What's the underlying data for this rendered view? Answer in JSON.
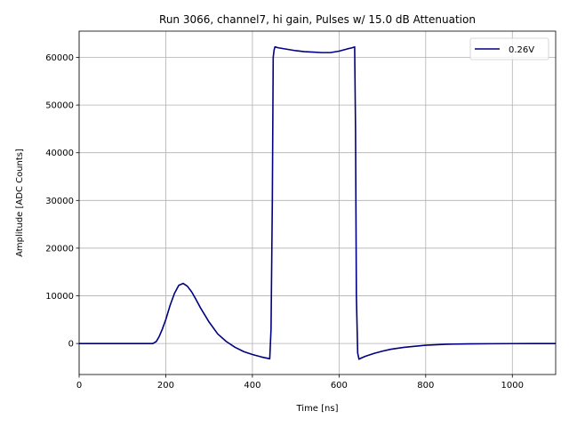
{
  "chart_data": {
    "type": "line",
    "title": "Run 3066, channel7, hi gain, Pulses w/ 15.0 dB Attenuation",
    "xlabel": "Time [ns]",
    "ylabel": "Amplitude [ADC Counts]",
    "xlim": [
      0,
      1100
    ],
    "ylim": [
      -6500,
      65500
    ],
    "xticks": [
      0,
      200,
      400,
      600,
      800,
      1000
    ],
    "yticks": [
      0,
      10000,
      20000,
      30000,
      40000,
      50000,
      60000
    ],
    "xtick_labels": [
      "0",
      "200",
      "400",
      "600",
      "800",
      "1000"
    ],
    "ytick_labels": [
      "0",
      "10000",
      "20000",
      "30000",
      "40000",
      "50000",
      "60000"
    ],
    "grid": true,
    "legend_position": "top-right",
    "colors": {
      "series": "#000080",
      "grid": "#b0b0b0"
    },
    "series": [
      {
        "name": "0.26V",
        "x": [
          0,
          100,
          170,
          178,
          185,
          192,
          200,
          210,
          220,
          230,
          240,
          250,
          260,
          270,
          280,
          300,
          320,
          340,
          360,
          380,
          400,
          420,
          440,
          443,
          446,
          448,
          450,
          452,
          460,
          480,
          500,
          520,
          540,
          560,
          580,
          600,
          620,
          630,
          636,
          638,
          640,
          643,
          646,
          650,
          660,
          680,
          700,
          720,
          750,
          800,
          850,
          900,
          950,
          1000,
          1050,
          1100
        ],
        "y": [
          0,
          0,
          0,
          400,
          1500,
          3000,
          5000,
          8000,
          10500,
          12200,
          12600,
          12000,
          10800,
          9200,
          7500,
          4500,
          2000,
          400,
          -800,
          -1700,
          -2300,
          -2800,
          -3200,
          3000,
          30000,
          60000,
          61500,
          62200,
          62000,
          61700,
          61400,
          61200,
          61100,
          61000,
          61000,
          61300,
          61800,
          62000,
          62200,
          45000,
          10000,
          -2000,
          -3300,
          -3100,
          -2700,
          -2100,
          -1600,
          -1200,
          -800,
          -350,
          -150,
          -80,
          -40,
          -20,
          0,
          0
        ]
      }
    ]
  }
}
